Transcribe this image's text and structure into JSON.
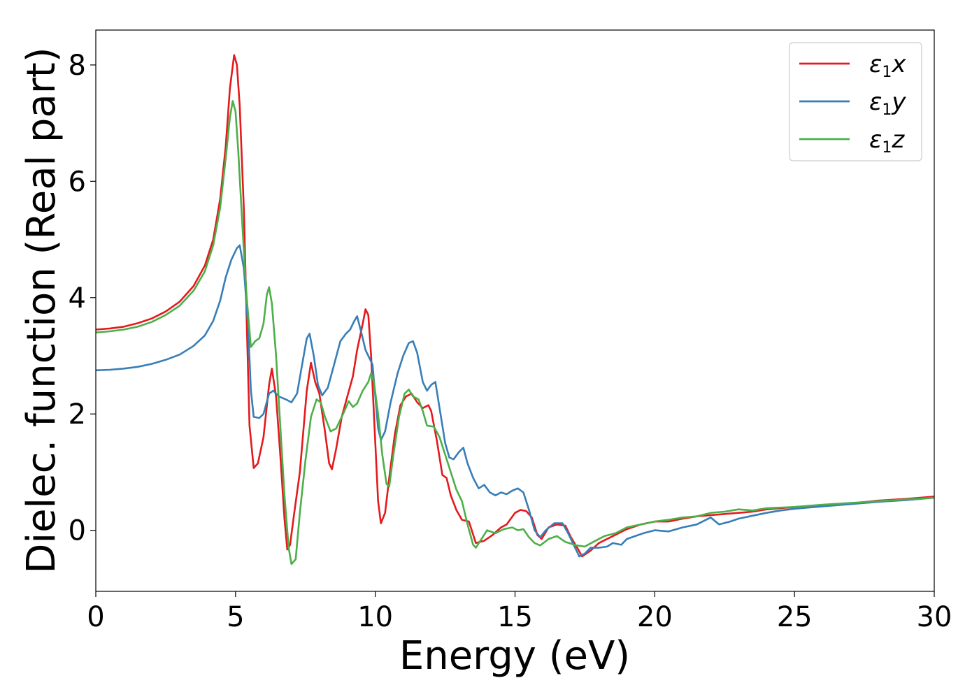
{
  "chart_data": {
    "type": "line",
    "title": "",
    "xlabel": "Energy (eV)",
    "ylabel": "Dielec. function (Real part)",
    "xlim": [
      0,
      30
    ],
    "ylim": [
      -1.05,
      8.6
    ],
    "xticks": [
      0,
      5,
      10,
      15,
      20,
      25,
      30
    ],
    "yticks": [
      0,
      2,
      4,
      6,
      8
    ],
    "grid": false,
    "legend_position": "top-right",
    "series": [
      {
        "name": "ε₁x",
        "legend_main": "ε",
        "legend_sub": "1",
        "legend_var": "x",
        "color": "#e41a1c",
        "points": [
          [
            0,
            3.45
          ],
          [
            0.5,
            3.47
          ],
          [
            1,
            3.5
          ],
          [
            1.5,
            3.56
          ],
          [
            2,
            3.64
          ],
          [
            2.5,
            3.76
          ],
          [
            3,
            3.93
          ],
          [
            3.5,
            4.2
          ],
          [
            3.9,
            4.55
          ],
          [
            4.2,
            5.0
          ],
          [
            4.45,
            5.7
          ],
          [
            4.65,
            6.6
          ],
          [
            4.8,
            7.6
          ],
          [
            4.95,
            8.17
          ],
          [
            5.05,
            8.0
          ],
          [
            5.15,
            7.3
          ],
          [
            5.3,
            5.5
          ],
          [
            5.4,
            3.6
          ],
          [
            5.5,
            1.8
          ],
          [
            5.65,
            1.07
          ],
          [
            5.8,
            1.15
          ],
          [
            6.0,
            1.6
          ],
          [
            6.2,
            2.5
          ],
          [
            6.3,
            2.78
          ],
          [
            6.45,
            2.3
          ],
          [
            6.6,
            1.3
          ],
          [
            6.75,
            0.2
          ],
          [
            6.85,
            -0.33
          ],
          [
            6.95,
            -0.25
          ],
          [
            7.1,
            0.3
          ],
          [
            7.3,
            1.0
          ],
          [
            7.55,
            2.4
          ],
          [
            7.7,
            2.88
          ],
          [
            7.85,
            2.55
          ],
          [
            8.0,
            2.35
          ],
          [
            8.2,
            1.7
          ],
          [
            8.35,
            1.15
          ],
          [
            8.45,
            1.05
          ],
          [
            8.6,
            1.4
          ],
          [
            8.8,
            1.95
          ],
          [
            9.0,
            2.3
          ],
          [
            9.2,
            2.65
          ],
          [
            9.35,
            3.1
          ],
          [
            9.55,
            3.55
          ],
          [
            9.65,
            3.8
          ],
          [
            9.75,
            3.7
          ],
          [
            9.85,
            3.0
          ],
          [
            10.0,
            1.5
          ],
          [
            10.1,
            0.5
          ],
          [
            10.2,
            0.12
          ],
          [
            10.35,
            0.3
          ],
          [
            10.5,
            0.9
          ],
          [
            10.7,
            1.65
          ],
          [
            10.9,
            2.15
          ],
          [
            11.1,
            2.3
          ],
          [
            11.3,
            2.35
          ],
          [
            11.5,
            2.2
          ],
          [
            11.7,
            2.1
          ],
          [
            11.9,
            2.15
          ],
          [
            12.0,
            2.05
          ],
          [
            12.2,
            1.55
          ],
          [
            12.4,
            0.95
          ],
          [
            12.55,
            0.9
          ],
          [
            12.7,
            0.6
          ],
          [
            12.9,
            0.35
          ],
          [
            13.1,
            0.18
          ],
          [
            13.35,
            0.15
          ],
          [
            13.6,
            -0.22
          ],
          [
            13.9,
            -0.18
          ],
          [
            14.2,
            -0.08
          ],
          [
            14.5,
            0.05
          ],
          [
            14.7,
            0.1
          ],
          [
            15.0,
            0.3
          ],
          [
            15.2,
            0.35
          ],
          [
            15.4,
            0.33
          ],
          [
            15.6,
            0.22
          ],
          [
            15.8,
            -0.08
          ],
          [
            15.95,
            -0.15
          ],
          [
            16.2,
            0.05
          ],
          [
            16.5,
            0.1
          ],
          [
            16.8,
            0.08
          ],
          [
            17.0,
            -0.12
          ],
          [
            17.25,
            -0.32
          ],
          [
            17.4,
            -0.45
          ],
          [
            17.7,
            -0.35
          ],
          [
            18.0,
            -0.22
          ],
          [
            18.5,
            -0.1
          ],
          [
            19.0,
            0.02
          ],
          [
            19.5,
            0.1
          ],
          [
            20.0,
            0.15
          ],
          [
            20.5,
            0.15
          ],
          [
            21.0,
            0.2
          ],
          [
            21.5,
            0.24
          ],
          [
            22.0,
            0.26
          ],
          [
            22.5,
            0.28
          ],
          [
            23.0,
            0.3
          ],
          [
            23.5,
            0.32
          ],
          [
            24.0,
            0.36
          ],
          [
            25.0,
            0.4
          ],
          [
            26.0,
            0.43
          ],
          [
            27.0,
            0.46
          ],
          [
            28.0,
            0.51
          ],
          [
            29.0,
            0.54
          ],
          [
            30.0,
            0.58
          ]
        ]
      },
      {
        "name": "ε₁y",
        "legend_main": "ε",
        "legend_sub": "1",
        "legend_var": "y",
        "color": "#377eb8",
        "points": [
          [
            0,
            2.75
          ],
          [
            0.5,
            2.76
          ],
          [
            1,
            2.78
          ],
          [
            1.5,
            2.81
          ],
          [
            2,
            2.86
          ],
          [
            2.5,
            2.93
          ],
          [
            3,
            3.02
          ],
          [
            3.5,
            3.17
          ],
          [
            3.9,
            3.35
          ],
          [
            4.2,
            3.6
          ],
          [
            4.45,
            3.95
          ],
          [
            4.65,
            4.35
          ],
          [
            4.85,
            4.65
          ],
          [
            5.05,
            4.85
          ],
          [
            5.15,
            4.9
          ],
          [
            5.3,
            4.5
          ],
          [
            5.45,
            3.5
          ],
          [
            5.55,
            2.4
          ],
          [
            5.65,
            1.95
          ],
          [
            5.85,
            1.93
          ],
          [
            6.0,
            2.0
          ],
          [
            6.2,
            2.35
          ],
          [
            6.35,
            2.4
          ],
          [
            6.55,
            2.3
          ],
          [
            6.8,
            2.25
          ],
          [
            7.0,
            2.2
          ],
          [
            7.2,
            2.35
          ],
          [
            7.4,
            2.9
          ],
          [
            7.55,
            3.3
          ],
          [
            7.65,
            3.38
          ],
          [
            7.8,
            3.0
          ],
          [
            7.95,
            2.5
          ],
          [
            8.1,
            2.32
          ],
          [
            8.3,
            2.45
          ],
          [
            8.5,
            2.8
          ],
          [
            8.75,
            3.25
          ],
          [
            8.95,
            3.38
          ],
          [
            9.1,
            3.45
          ],
          [
            9.25,
            3.6
          ],
          [
            9.35,
            3.68
          ],
          [
            9.5,
            3.4
          ],
          [
            9.65,
            3.1
          ],
          [
            9.8,
            2.95
          ],
          [
            9.9,
            2.85
          ],
          [
            10.0,
            2.3
          ],
          [
            10.1,
            1.75
          ],
          [
            10.2,
            1.55
          ],
          [
            10.35,
            1.7
          ],
          [
            10.55,
            2.2
          ],
          [
            10.8,
            2.7
          ],
          [
            11.0,
            3.0
          ],
          [
            11.2,
            3.22
          ],
          [
            11.35,
            3.25
          ],
          [
            11.5,
            3.05
          ],
          [
            11.7,
            2.55
          ],
          [
            11.85,
            2.4
          ],
          [
            12.0,
            2.5
          ],
          [
            12.15,
            2.55
          ],
          [
            12.3,
            2.1
          ],
          [
            12.5,
            1.5
          ],
          [
            12.65,
            1.25
          ],
          [
            12.8,
            1.22
          ],
          [
            13.0,
            1.35
          ],
          [
            13.15,
            1.42
          ],
          [
            13.3,
            1.15
          ],
          [
            13.5,
            0.9
          ],
          [
            13.7,
            0.72
          ],
          [
            13.9,
            0.78
          ],
          [
            14.1,
            0.65
          ],
          [
            14.3,
            0.6
          ],
          [
            14.5,
            0.65
          ],
          [
            14.7,
            0.62
          ],
          [
            14.9,
            0.68
          ],
          [
            15.1,
            0.72
          ],
          [
            15.3,
            0.65
          ],
          [
            15.5,
            0.35
          ],
          [
            15.7,
            0.0
          ],
          [
            15.9,
            -0.12
          ],
          [
            16.1,
            0.0
          ],
          [
            16.4,
            0.12
          ],
          [
            16.7,
            0.12
          ],
          [
            16.9,
            -0.05
          ],
          [
            17.1,
            -0.25
          ],
          [
            17.3,
            -0.45
          ],
          [
            17.5,
            -0.4
          ],
          [
            17.7,
            -0.3
          ],
          [
            18.0,
            -0.3
          ],
          [
            18.3,
            -0.28
          ],
          [
            18.5,
            -0.22
          ],
          [
            18.8,
            -0.25
          ],
          [
            19.0,
            -0.15
          ],
          [
            19.3,
            -0.1
          ],
          [
            19.6,
            -0.05
          ],
          [
            20.0,
            0.0
          ],
          [
            20.5,
            -0.02
          ],
          [
            21.0,
            0.05
          ],
          [
            21.5,
            0.1
          ],
          [
            22.0,
            0.22
          ],
          [
            22.3,
            0.1
          ],
          [
            22.7,
            0.15
          ],
          [
            23.0,
            0.2
          ],
          [
            23.5,
            0.25
          ],
          [
            24.0,
            0.3
          ],
          [
            24.5,
            0.34
          ],
          [
            25.0,
            0.37
          ],
          [
            26.0,
            0.41
          ],
          [
            27.0,
            0.45
          ],
          [
            28.0,
            0.49
          ],
          [
            29.0,
            0.52
          ],
          [
            30.0,
            0.56
          ]
        ]
      },
      {
        "name": "ε₁z",
        "legend_main": "ε",
        "legend_sub": "1",
        "legend_var": "z",
        "color": "#4daf4a",
        "points": [
          [
            0,
            3.4
          ],
          [
            0.5,
            3.42
          ],
          [
            1,
            3.45
          ],
          [
            1.5,
            3.5
          ],
          [
            2,
            3.58
          ],
          [
            2.5,
            3.7
          ],
          [
            3,
            3.86
          ],
          [
            3.5,
            4.12
          ],
          [
            3.9,
            4.45
          ],
          [
            4.2,
            4.9
          ],
          [
            4.45,
            5.55
          ],
          [
            4.65,
            6.4
          ],
          [
            4.8,
            7.1
          ],
          [
            4.9,
            7.38
          ],
          [
            5.0,
            7.2
          ],
          [
            5.1,
            6.5
          ],
          [
            5.25,
            5.2
          ],
          [
            5.4,
            4.0
          ],
          [
            5.55,
            3.15
          ],
          [
            5.7,
            3.25
          ],
          [
            5.85,
            3.3
          ],
          [
            6.0,
            3.55
          ],
          [
            6.12,
            4.05
          ],
          [
            6.2,
            4.18
          ],
          [
            6.3,
            3.9
          ],
          [
            6.45,
            3.0
          ],
          [
            6.6,
            1.8
          ],
          [
            6.75,
            0.6
          ],
          [
            6.9,
            -0.3
          ],
          [
            7.0,
            -0.58
          ],
          [
            7.15,
            -0.5
          ],
          [
            7.3,
            0.3
          ],
          [
            7.5,
            1.2
          ],
          [
            7.7,
            1.95
          ],
          [
            7.9,
            2.25
          ],
          [
            8.05,
            2.2
          ],
          [
            8.2,
            1.95
          ],
          [
            8.4,
            1.7
          ],
          [
            8.6,
            1.75
          ],
          [
            8.85,
            2.0
          ],
          [
            9.05,
            2.22
          ],
          [
            9.2,
            2.12
          ],
          [
            9.35,
            2.18
          ],
          [
            9.55,
            2.4
          ],
          [
            9.75,
            2.55
          ],
          [
            9.85,
            2.7
          ],
          [
            9.95,
            2.55
          ],
          [
            10.1,
            2.0
          ],
          [
            10.25,
            1.3
          ],
          [
            10.4,
            0.8
          ],
          [
            10.5,
            0.75
          ],
          [
            10.65,
            1.3
          ],
          [
            10.85,
            1.95
          ],
          [
            11.05,
            2.35
          ],
          [
            11.2,
            2.42
          ],
          [
            11.35,
            2.3
          ],
          [
            11.55,
            2.25
          ],
          [
            11.7,
            2.05
          ],
          [
            11.85,
            1.8
          ],
          [
            12.1,
            1.78
          ],
          [
            12.3,
            1.6
          ],
          [
            12.5,
            1.3
          ],
          [
            12.7,
            1.0
          ],
          [
            12.9,
            0.7
          ],
          [
            13.1,
            0.5
          ],
          [
            13.3,
            0.1
          ],
          [
            13.5,
            -0.25
          ],
          [
            13.6,
            -0.3
          ],
          [
            13.8,
            -0.15
          ],
          [
            14.0,
            0.0
          ],
          [
            14.3,
            -0.05
          ],
          [
            14.6,
            0.02
          ],
          [
            14.9,
            0.05
          ],
          [
            15.1,
            0.0
          ],
          [
            15.3,
            0.02
          ],
          [
            15.5,
            -0.12
          ],
          [
            15.7,
            -0.22
          ],
          [
            15.9,
            -0.26
          ],
          [
            16.2,
            -0.15
          ],
          [
            16.5,
            -0.1
          ],
          [
            16.8,
            -0.2
          ],
          [
            17.2,
            -0.26
          ],
          [
            17.5,
            -0.28
          ],
          [
            17.8,
            -0.2
          ],
          [
            18.2,
            -0.1
          ],
          [
            18.6,
            -0.05
          ],
          [
            19.0,
            0.05
          ],
          [
            19.5,
            0.1
          ],
          [
            20.0,
            0.15
          ],
          [
            20.5,
            0.18
          ],
          [
            21.0,
            0.22
          ],
          [
            21.5,
            0.24
          ],
          [
            22.0,
            0.3
          ],
          [
            22.5,
            0.32
          ],
          [
            23.0,
            0.36
          ],
          [
            23.5,
            0.34
          ],
          [
            24.0,
            0.38
          ],
          [
            25.0,
            0.4
          ],
          [
            26.0,
            0.44
          ],
          [
            27.0,
            0.47
          ],
          [
            28.0,
            0.5
          ],
          [
            29.0,
            0.53
          ],
          [
            30.0,
            0.56
          ]
        ]
      }
    ]
  }
}
